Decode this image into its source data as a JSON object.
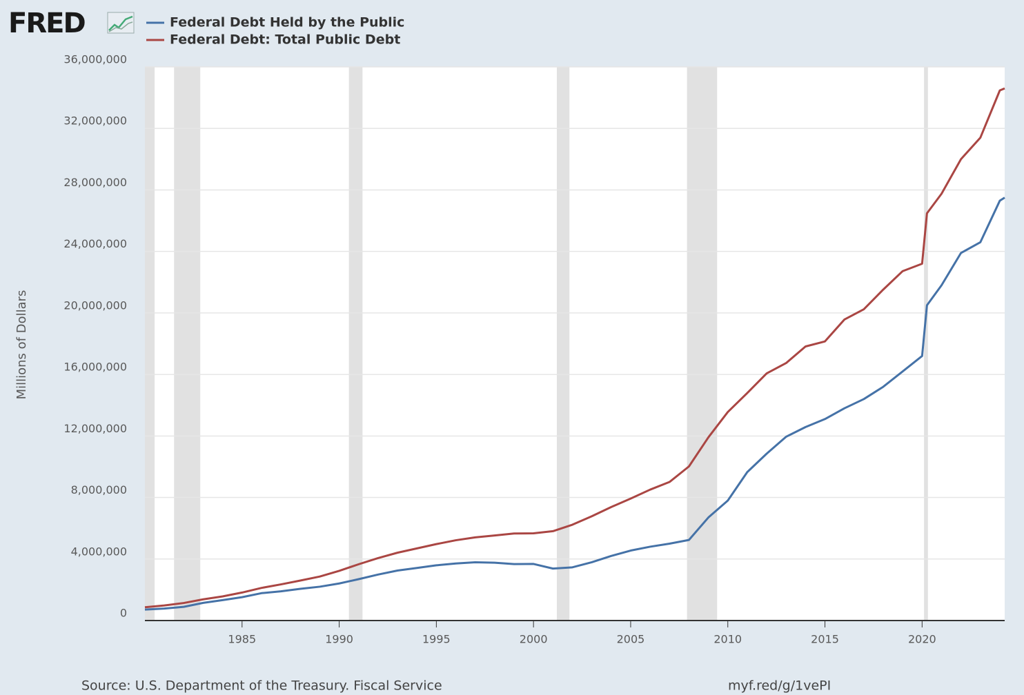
{
  "chart_data": {
    "type": "line",
    "logo": "FRED",
    "ylabel": "Millions of Dollars",
    "source": "Source: U.S. Department of the Treasury. Fiscal Service",
    "url": "myf.red/g/1vePI",
    "x": [
      1980,
      1981,
      1982,
      1983,
      1984,
      1985,
      1986,
      1987,
      1988,
      1989,
      1990,
      1991,
      1992,
      1993,
      1994,
      1995,
      1996,
      1997,
      1998,
      1999,
      2000,
      2001,
      2002,
      2003,
      2004,
      2005,
      2006,
      2007,
      2008,
      2009,
      2010,
      2011,
      2012,
      2013,
      2014,
      2015,
      2016,
      2017,
      2018,
      2019,
      2020,
      2020.25,
      2021,
      2022,
      2023,
      2024,
      2024.25
    ],
    "series": [
      {
        "name": "Federal Debt Held by the Public",
        "color": "#4572a7",
        "values": [
          710000,
          780000,
          890000,
          1150000,
          1330000,
          1520000,
          1780000,
          1900000,
          2060000,
          2200000,
          2410000,
          2690000,
          2990000,
          3250000,
          3420000,
          3590000,
          3710000,
          3790000,
          3760000,
          3670000,
          3680000,
          3380000,
          3460000,
          3790000,
          4200000,
          4550000,
          4800000,
          5000000,
          5240000,
          6700000,
          7800000,
          9650000,
          10850000,
          11950000,
          12580000,
          13100000,
          13800000,
          14400000,
          15200000,
          16200000,
          17200000,
          20500000,
          21800000,
          23900000,
          24600000,
          27300000,
          27500000
        ]
      },
      {
        "name": "Federal Debt: Total Public Debt",
        "color": "#aa4643",
        "values": [
          863000,
          980000,
          1140000,
          1380000,
          1570000,
          1820000,
          2120000,
          2350000,
          2600000,
          2860000,
          3230000,
          3660000,
          4060000,
          4410000,
          4690000,
          4970000,
          5220000,
          5410000,
          5530000,
          5660000,
          5670000,
          5810000,
          6230000,
          6780000,
          7380000,
          7930000,
          8510000,
          9010000,
          10020000,
          11910000,
          13560000,
          14790000,
          16070000,
          16740000,
          17820000,
          18150000,
          19570000,
          20240000,
          21520000,
          22720000,
          23200000,
          26480000,
          27750000,
          30000000,
          31400000,
          34470000,
          34600000
        ]
      }
    ],
    "recessions": [
      [
        1980,
        1980.5
      ],
      [
        1981.5,
        1982.85
      ],
      [
        1990.5,
        1991.2
      ],
      [
        2001.2,
        2001.85
      ],
      [
        2007.9,
        2009.45
      ],
      [
        2020.1,
        2020.3
      ]
    ],
    "xlim": [
      1980,
      2024.25
    ],
    "xticks": [
      1985,
      1990,
      1995,
      2000,
      2005,
      2010,
      2015,
      2020
    ],
    "ylim": [
      0,
      36000000
    ],
    "yticks": [
      0,
      {
        "value": 4000000,
        "label": "4,000,000"
      },
      {
        "value": 8000000,
        "label": "8,000,000"
      },
      {
        "value": 12000000,
        "label": "12,000,000"
      },
      {
        "value": 16000000,
        "label": "16,000,000"
      },
      {
        "value": 20000000,
        "label": "20,000,000"
      },
      {
        "value": 24000000,
        "label": "24,000,000"
      },
      {
        "value": 28000000,
        "label": "28,000,000"
      },
      {
        "value": 32000000,
        "label": "32,000,000"
      },
      {
        "value": 36000000,
        "label": "36,000,000"
      }
    ],
    "grid": true
  }
}
